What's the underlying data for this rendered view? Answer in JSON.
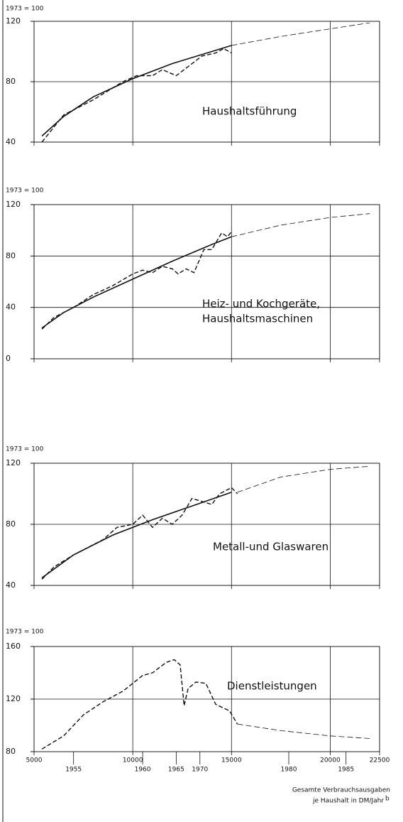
{
  "chart_data": [
    {
      "type": "line",
      "ylabel": "1973 = 100",
      "annotation": [
        "Haushaltsführung"
      ],
      "xlim": [
        5000,
        22500
      ],
      "xticks": [
        5000,
        10000,
        15000,
        20000,
        22500
      ],
      "ylim": [
        40,
        120
      ],
      "yticks": [
        40,
        80,
        120
      ],
      "grid": true,
      "series": [
        {
          "style": "solid",
          "color": "#111",
          "x": [
            5400,
            6500,
            8000,
            10000,
            12000,
            14000,
            15000
          ],
          "values": [
            44,
            57,
            70,
            82,
            92,
            100,
            104
          ]
        },
        {
          "style": "dashed",
          "color": "#111",
          "x": [
            5400,
            6500,
            8000,
            9500,
            10200,
            11000,
            11500,
            12200,
            12800,
            13500,
            14200,
            14600,
            15000
          ],
          "values": [
            40,
            58,
            68,
            80,
            84,
            84,
            88,
            84,
            90,
            97,
            99,
            102,
            99
          ]
        },
        {
          "style": "thin-dashed",
          "color": "#111",
          "x": [
            15000,
            17500,
            20000,
            22000
          ],
          "values": [
            104,
            110,
            115,
            119
          ]
        }
      ]
    },
    {
      "type": "line",
      "ylabel": "1973 = 100",
      "annotation": [
        "Heiz- und Kochgeräte,",
        "Haushaltsmaschinen"
      ],
      "xlim": [
        5000,
        22500
      ],
      "xticks": [
        5000,
        10000,
        15000,
        20000,
        22500
      ],
      "ylim": [
        0,
        120
      ],
      "yticks": [
        0,
        40,
        80,
        120
      ],
      "grid": true,
      "series": [
        {
          "style": "solid",
          "color": "#111",
          "x": [
            5400,
            6500,
            8000,
            10000,
            12000,
            14000,
            15000
          ],
          "values": [
            24,
            36,
            48,
            62,
            76,
            89,
            95
          ]
        },
        {
          "style": "dashed",
          "color": "#111",
          "x": [
            5400,
            6000,
            7000,
            8000,
            9000,
            10000,
            10500,
            11000,
            11500,
            12000,
            12300,
            12700,
            13100,
            13600,
            14000,
            14500,
            14800,
            15000
          ],
          "values": [
            23,
            32,
            40,
            50,
            57,
            66,
            69,
            67,
            72,
            70,
            66,
            70,
            67,
            85,
            85,
            98,
            95,
            99
          ]
        },
        {
          "style": "thin-dashed",
          "color": "#111",
          "x": [
            15000,
            17500,
            20000,
            22000
          ],
          "values": [
            95,
            104,
            110,
            113
          ]
        }
      ]
    },
    {
      "type": "line",
      "ylabel": "1973 = 100",
      "annotation": [
        "Metall-und Glaswaren"
      ],
      "xlim": [
        5000,
        22500
      ],
      "xticks": [
        5000,
        10000,
        15000,
        20000,
        22500
      ],
      "ylim": [
        40,
        120
      ],
      "yticks": [
        40,
        80,
        120
      ],
      "grid": true,
      "series": [
        {
          "style": "solid",
          "color": "#111",
          "x": [
            5400,
            7000,
            9000,
            11000,
            13000,
            15000
          ],
          "values": [
            45,
            60,
            73,
            83,
            92,
            101
          ]
        },
        {
          "style": "dashed",
          "color": "#111",
          "x": [
            5400,
            6000,
            7000,
            8500,
            9200,
            10000,
            10500,
            11000,
            11500,
            12000,
            12500,
            13000,
            13500,
            14000,
            14400,
            15000,
            15300
          ],
          "values": [
            44,
            52,
            60,
            70,
            78,
            80,
            86,
            78,
            84,
            80,
            86,
            97,
            95,
            93,
            100,
            104,
            100
          ]
        },
        {
          "style": "thin-dashed",
          "color": "#111",
          "x": [
            15300,
            17500,
            20000,
            22000
          ],
          "values": [
            101,
            111,
            116,
            118
          ]
        }
      ]
    },
    {
      "type": "line",
      "ylabel": "1973 = 100",
      "annotation": [
        "Dienstleistungen"
      ],
      "xlabel": [
        "Gesamte Verbrauchsausgaben",
        "je Haushalt in DM/Jahr"
      ],
      "xlabel_note": "b",
      "xlim": [
        5000,
        22500
      ],
      "xticks": [
        5000,
        10000,
        15000,
        20000,
        22500
      ],
      "x2ticks": [
        {
          "value": 7000,
          "label": "1955"
        },
        {
          "value": 10500,
          "label": "1960"
        },
        {
          "value": 12200,
          "label": "1965"
        },
        {
          "value": 13400,
          "label": "1970"
        },
        {
          "value": 17900,
          "label": "1980"
        },
        {
          "value": 20800,
          "label": "1985"
        }
      ],
      "ylim": [
        80,
        160
      ],
      "yticks": [
        80,
        120,
        160
      ],
      "grid": true,
      "xtick_labels": true,
      "series": [
        {
          "style": "dashed",
          "color": "#111",
          "x": [
            5400,
            6500,
            7500,
            8500,
            9500,
            10500,
            11000,
            11700,
            12100,
            12400,
            12600,
            12800,
            13200,
            13700,
            14200,
            14900,
            15300
          ],
          "values": [
            82,
            92,
            108,
            118,
            126,
            138,
            140,
            148,
            150,
            146,
            115,
            128,
            133,
            132,
            116,
            111,
            101
          ]
        },
        {
          "style": "thin-dashed",
          "color": "#111",
          "x": [
            15300,
            17500,
            20000,
            22000
          ],
          "values": [
            101,
            96,
            92,
            90
          ]
        }
      ]
    }
  ]
}
